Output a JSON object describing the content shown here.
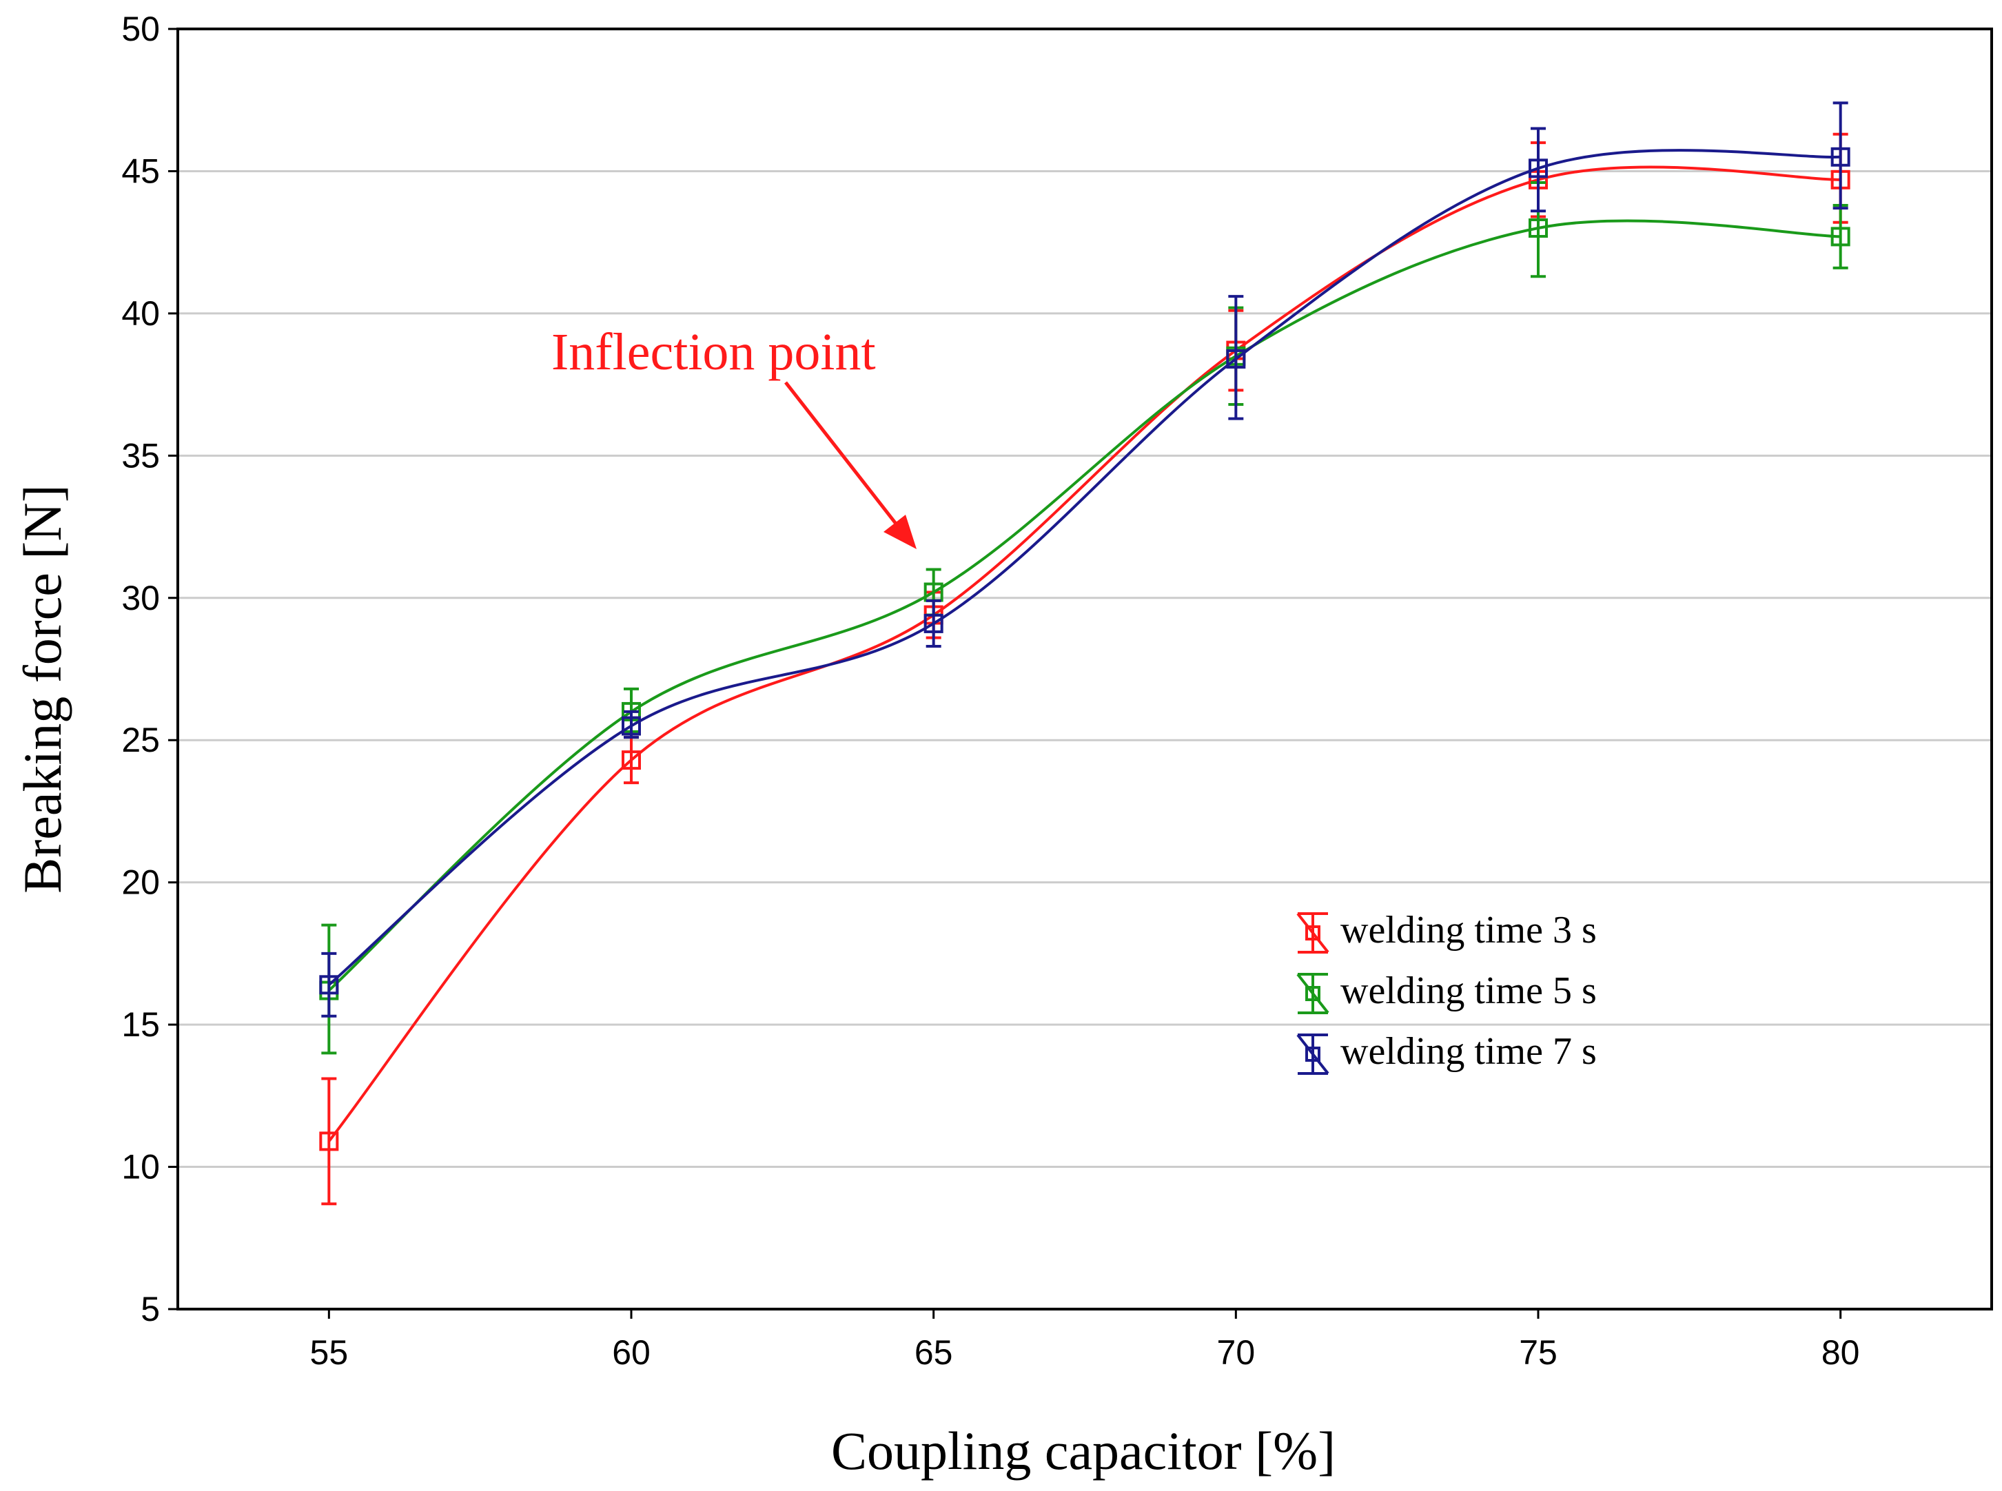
{
  "chart_data": {
    "type": "line",
    "title": "",
    "xlabel": "Coupling capacitor [%]",
    "ylabel": "Breaking force [N]",
    "x": [
      55,
      60,
      65,
      70,
      75,
      80
    ],
    "xticks": [
      "55",
      "60",
      "65",
      "70",
      "75",
      "80"
    ],
    "xlim": [
      52.5,
      82.5
    ],
    "yticks": [
      "5",
      "10",
      "15",
      "20",
      "25",
      "30",
      "35",
      "40",
      "45",
      "50"
    ],
    "ylim": [
      5,
      50
    ],
    "grid": "horizontal",
    "legend_position": "lower-right",
    "series": [
      {
        "name": "welding time 3 s",
        "color": "#ff1a1a",
        "values": [
          10.9,
          24.3,
          29.4,
          38.7,
          44.7,
          44.7
        ],
        "err_low": [
          8.7,
          23.5,
          28.6,
          37.3,
          43.4,
          43.2
        ],
        "err_high": [
          13.1,
          25.1,
          30.2,
          40.1,
          46.0,
          46.3
        ]
      },
      {
        "name": "welding time 5 s",
        "color": "#1a9a1a",
        "values": [
          16.2,
          26.0,
          30.2,
          38.5,
          43.0,
          42.7
        ],
        "err_low": [
          14.0,
          25.3,
          29.4,
          36.8,
          41.3,
          41.6
        ],
        "err_high": [
          18.5,
          26.8,
          31.0,
          40.2,
          44.6,
          43.8
        ]
      },
      {
        "name": "welding time 7 s",
        "color": "#1a1a8c",
        "values": [
          16.4,
          25.5,
          29.1,
          38.4,
          45.1,
          45.5
        ],
        "err_low": [
          15.3,
          25.1,
          28.3,
          36.3,
          43.6,
          43.7
        ],
        "err_high": [
          17.5,
          26.0,
          29.9,
          40.6,
          46.5,
          47.4
        ]
      }
    ],
    "annotation": {
      "text": "Inflection point",
      "color": "#ff1a1a",
      "target_x": 65,
      "target_y": 30.2
    }
  }
}
